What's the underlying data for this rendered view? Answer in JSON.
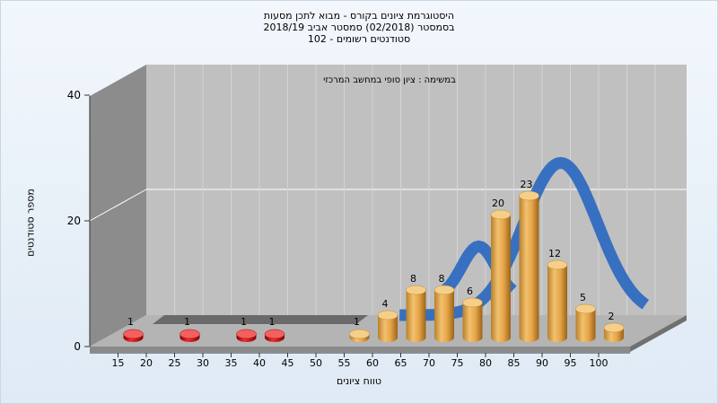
{
  "chart_data": {
    "type": "bar",
    "title_lines": [
      "היסטוגרמת ציונים בקורס - מבוא לתכן מסעות",
      "בסמסטר  (02/2018)  סמסטר אביב 2018/19",
      "סטודנטים רשומים - 102"
    ],
    "annotation": "במשימה : ציון סופי במחשב המרכזי",
    "xlabel": "טווח ציונים",
    "ylabel": "מספר סטודנטים",
    "y_ticks": [
      "0",
      "20",
      "40"
    ],
    "ylim": [
      0,
      40
    ],
    "x_ticks": [
      "15",
      "20",
      "25",
      "30",
      "35",
      "40",
      "45",
      "50",
      "55",
      "60",
      "65",
      "70",
      "75",
      "80",
      "85",
      "90",
      "95",
      "100"
    ],
    "categories": [
      "15",
      "25",
      "35",
      "40",
      "55",
      "60",
      "65",
      "70",
      "75",
      "80",
      "85",
      "90",
      "95",
      "100"
    ],
    "values": [
      1,
      1,
      1,
      1,
      1,
      4,
      8,
      8,
      6,
      20,
      23,
      12,
      5,
      2
    ],
    "value_labels": [
      "1",
      "1",
      "1",
      "1",
      "1",
      "4",
      "8",
      "8",
      "6",
      "20",
      "23",
      "12",
      "5",
      "2"
    ],
    "failing_threshold": 55,
    "colors": {
      "failing_bar": "#cc1010",
      "passing_bar": "#e0a040",
      "curve": "#2f6cc0",
      "back_wall": "#c0c0c0",
      "left_wall": "#8c8c8c",
      "floor": "#b4b4b4"
    },
    "grid": true
  }
}
